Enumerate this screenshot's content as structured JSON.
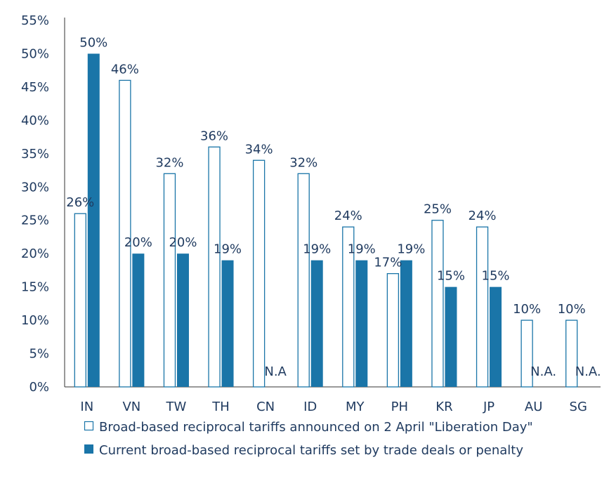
{
  "chart_data": {
    "type": "bar",
    "categories": [
      "IN",
      "VN",
      "TW",
      "TH",
      "CN",
      "ID",
      "MY",
      "PH",
      "KR",
      "JP",
      "AU",
      "SG"
    ],
    "series": [
      {
        "name": "Broad-based reciprocal tariffs announced on 2 April \"Liberation Day\"",
        "values": [
          26,
          46,
          32,
          36,
          34,
          32,
          24,
          17,
          25,
          24,
          10,
          10
        ],
        "labels": [
          "26%",
          "46%",
          "32%",
          "36%",
          "34%",
          "32%",
          "24%",
          "17%",
          "25%",
          "24%",
          "10%",
          "10%"
        ],
        "style": "outline",
        "color": "#1a75a8"
      },
      {
        "name": "Current broad-based reciprocal tariffs set by trade deals or penalty",
        "values": [
          50,
          20,
          20,
          19,
          null,
          19,
          19,
          19,
          15,
          15,
          null,
          null
        ],
        "labels": [
          "50%",
          "20%",
          "20%",
          "19%",
          "N.A",
          "19%",
          "19%",
          "19%",
          "15%",
          "15%",
          "N.A.",
          "N.A."
        ],
        "style": "filled",
        "color": "#1a75a8"
      }
    ],
    "y_ticks": [
      "0%",
      "5%",
      "10%",
      "15%",
      "20%",
      "25%",
      "30%",
      "35%",
      "40%",
      "45%",
      "50%",
      "55%"
    ],
    "ylim": [
      0,
      55
    ],
    "title": "",
    "xlabel": "",
    "ylabel": "",
    "legend_position": "bottom"
  },
  "colors": {
    "text": "#1f3a5f",
    "axis": "#333333",
    "bar": "#1a75a8"
  }
}
